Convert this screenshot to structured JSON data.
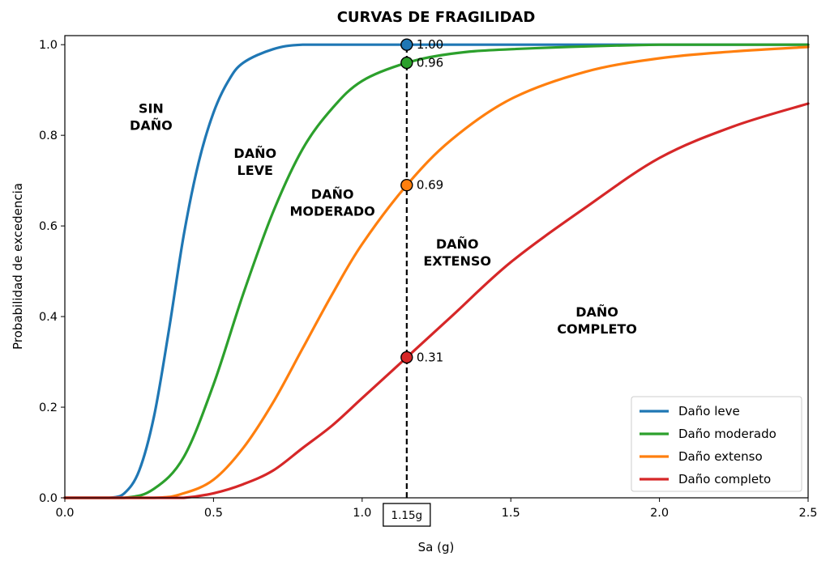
{
  "chart_data": {
    "type": "line",
    "title": "CURVAS DE FRAGILIDAD",
    "xlabel": "Sa (g)",
    "ylabel": "Probabilidad de excedencia",
    "xlim": [
      0,
      2.5
    ],
    "ylim": [
      0,
      1.02
    ],
    "x_ticks": [
      "0.0",
      "0.5",
      "1.0",
      "1.5",
      "2.0",
      "2.5"
    ],
    "x_tick_values": [
      0,
      0.5,
      1.0,
      1.5,
      2.0,
      2.5
    ],
    "y_ticks": [
      "0.0",
      "0.2",
      "0.4",
      "0.6",
      "0.8",
      "1.0"
    ],
    "y_tick_values": [
      0,
      0.2,
      0.4,
      0.6,
      0.8,
      1.0
    ],
    "grid": false,
    "legend_position": "bottom-right",
    "series": [
      {
        "name": "Daño leve",
        "color": "#1f77b4",
        "x": [
          0.0,
          0.1,
          0.15,
          0.2,
          0.25,
          0.3,
          0.35,
          0.4,
          0.45,
          0.5,
          0.55,
          0.6,
          0.7,
          0.8,
          1.0,
          1.15,
          1.5,
          2.0,
          2.5
        ],
        "y": [
          0.0,
          0.0,
          0.0,
          0.01,
          0.06,
          0.18,
          0.37,
          0.58,
          0.74,
          0.85,
          0.92,
          0.96,
          0.99,
          1.0,
          1.0,
          1.0,
          1.0,
          1.0,
          1.0
        ]
      },
      {
        "name": "Daño moderado",
        "color": "#2ca02c",
        "x": [
          0.0,
          0.2,
          0.3,
          0.4,
          0.5,
          0.6,
          0.7,
          0.8,
          0.9,
          1.0,
          1.15,
          1.3,
          1.5,
          2.0,
          2.5
        ],
        "y": [
          0.0,
          0.0,
          0.02,
          0.09,
          0.25,
          0.45,
          0.63,
          0.77,
          0.86,
          0.92,
          0.96,
          0.98,
          0.99,
          1.0,
          1.0
        ]
      },
      {
        "name": "Daño extenso",
        "color": "#ff7f0e",
        "x": [
          0.0,
          0.3,
          0.4,
          0.5,
          0.6,
          0.7,
          0.8,
          0.9,
          1.0,
          1.15,
          1.3,
          1.5,
          1.75,
          2.0,
          2.25,
          2.5
        ],
        "y": [
          0.0,
          0.0,
          0.01,
          0.04,
          0.11,
          0.21,
          0.33,
          0.45,
          0.56,
          0.69,
          0.79,
          0.88,
          0.94,
          0.97,
          0.985,
          0.995
        ]
      },
      {
        "name": "Daño completo",
        "color": "#d62728",
        "x": [
          0.0,
          0.3,
          0.4,
          0.5,
          0.6,
          0.7,
          0.8,
          0.9,
          1.0,
          1.15,
          1.3,
          1.5,
          1.75,
          2.0,
          2.25,
          2.5
        ],
        "y": [
          0.0,
          0.0,
          0.0,
          0.01,
          0.03,
          0.06,
          0.11,
          0.16,
          0.22,
          0.31,
          0.4,
          0.52,
          0.64,
          0.75,
          0.82,
          0.87
        ]
      }
    ],
    "vertical_line": {
      "x": 1.15,
      "label": "1.15g",
      "style": "dashed"
    },
    "markers": [
      {
        "series": "Daño leve",
        "x": 1.15,
        "y": 1.0,
        "label": "1.00"
      },
      {
        "series": "Daño moderado",
        "x": 1.15,
        "y": 0.96,
        "label": "0.96"
      },
      {
        "series": "Daño extenso",
        "x": 1.15,
        "y": 0.69,
        "label": "0.69"
      },
      {
        "series": "Daño completo",
        "x": 1.15,
        "y": 0.31,
        "label": "0.31"
      }
    ],
    "annotations": [
      {
        "lines": [
          "SIN",
          "DAÑO"
        ],
        "x": 0.29,
        "y": 0.84
      },
      {
        "lines": [
          "DAÑO",
          "LEVE"
        ],
        "x": 0.64,
        "y": 0.74
      },
      {
        "lines": [
          "DAÑO",
          "MODERADO"
        ],
        "x": 0.9,
        "y": 0.65
      },
      {
        "lines": [
          "DAÑO",
          "EXTENSO"
        ],
        "x": 1.32,
        "y": 0.54
      },
      {
        "lines": [
          "DAÑO",
          "COMPLETO"
        ],
        "x": 1.79,
        "y": 0.39
      }
    ]
  }
}
